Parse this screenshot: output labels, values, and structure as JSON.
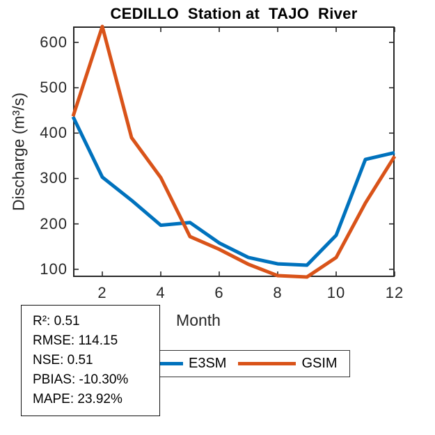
{
  "title": "CEDILLO  Station at  TAJO  River",
  "chart_data": {
    "type": "line",
    "title": "CEDILLO  Station at  TAJO  River",
    "xlabel": "Month",
    "ylabel": "Discharge (m³/s)",
    "x": [
      1,
      2,
      3,
      4,
      5,
      6,
      7,
      8,
      9,
      10,
      11,
      12
    ],
    "series": [
      {
        "name": "E3SM",
        "color": "#0072BD",
        "values": [
          436,
          303,
          252,
          197,
          203,
          158,
          126,
          112,
          109,
          175,
          342,
          357
        ]
      },
      {
        "name": "GSIM",
        "color": "#D95319",
        "values": [
          437,
          635,
          390,
          302,
          172,
          144,
          111,
          86,
          83,
          126,
          246,
          349
        ]
      }
    ],
    "xticks": [
      2,
      4,
      6,
      8,
      10,
      12
    ],
    "yticks": [
      100,
      200,
      300,
      400,
      500,
      600
    ],
    "xlim": [
      1,
      12
    ],
    "ylim": [
      83,
      635
    ],
    "grid": false,
    "legend_position": "below-plot-horizontal",
    "line_width": 5,
    "axis_color": "#262626"
  },
  "stats_box": {
    "lines": [
      "R²: 0.51",
      "RMSE: 114.15",
      "NSE: 0.51",
      "PBIAS: -10.30%",
      "MAPE: 23.92%"
    ]
  }
}
